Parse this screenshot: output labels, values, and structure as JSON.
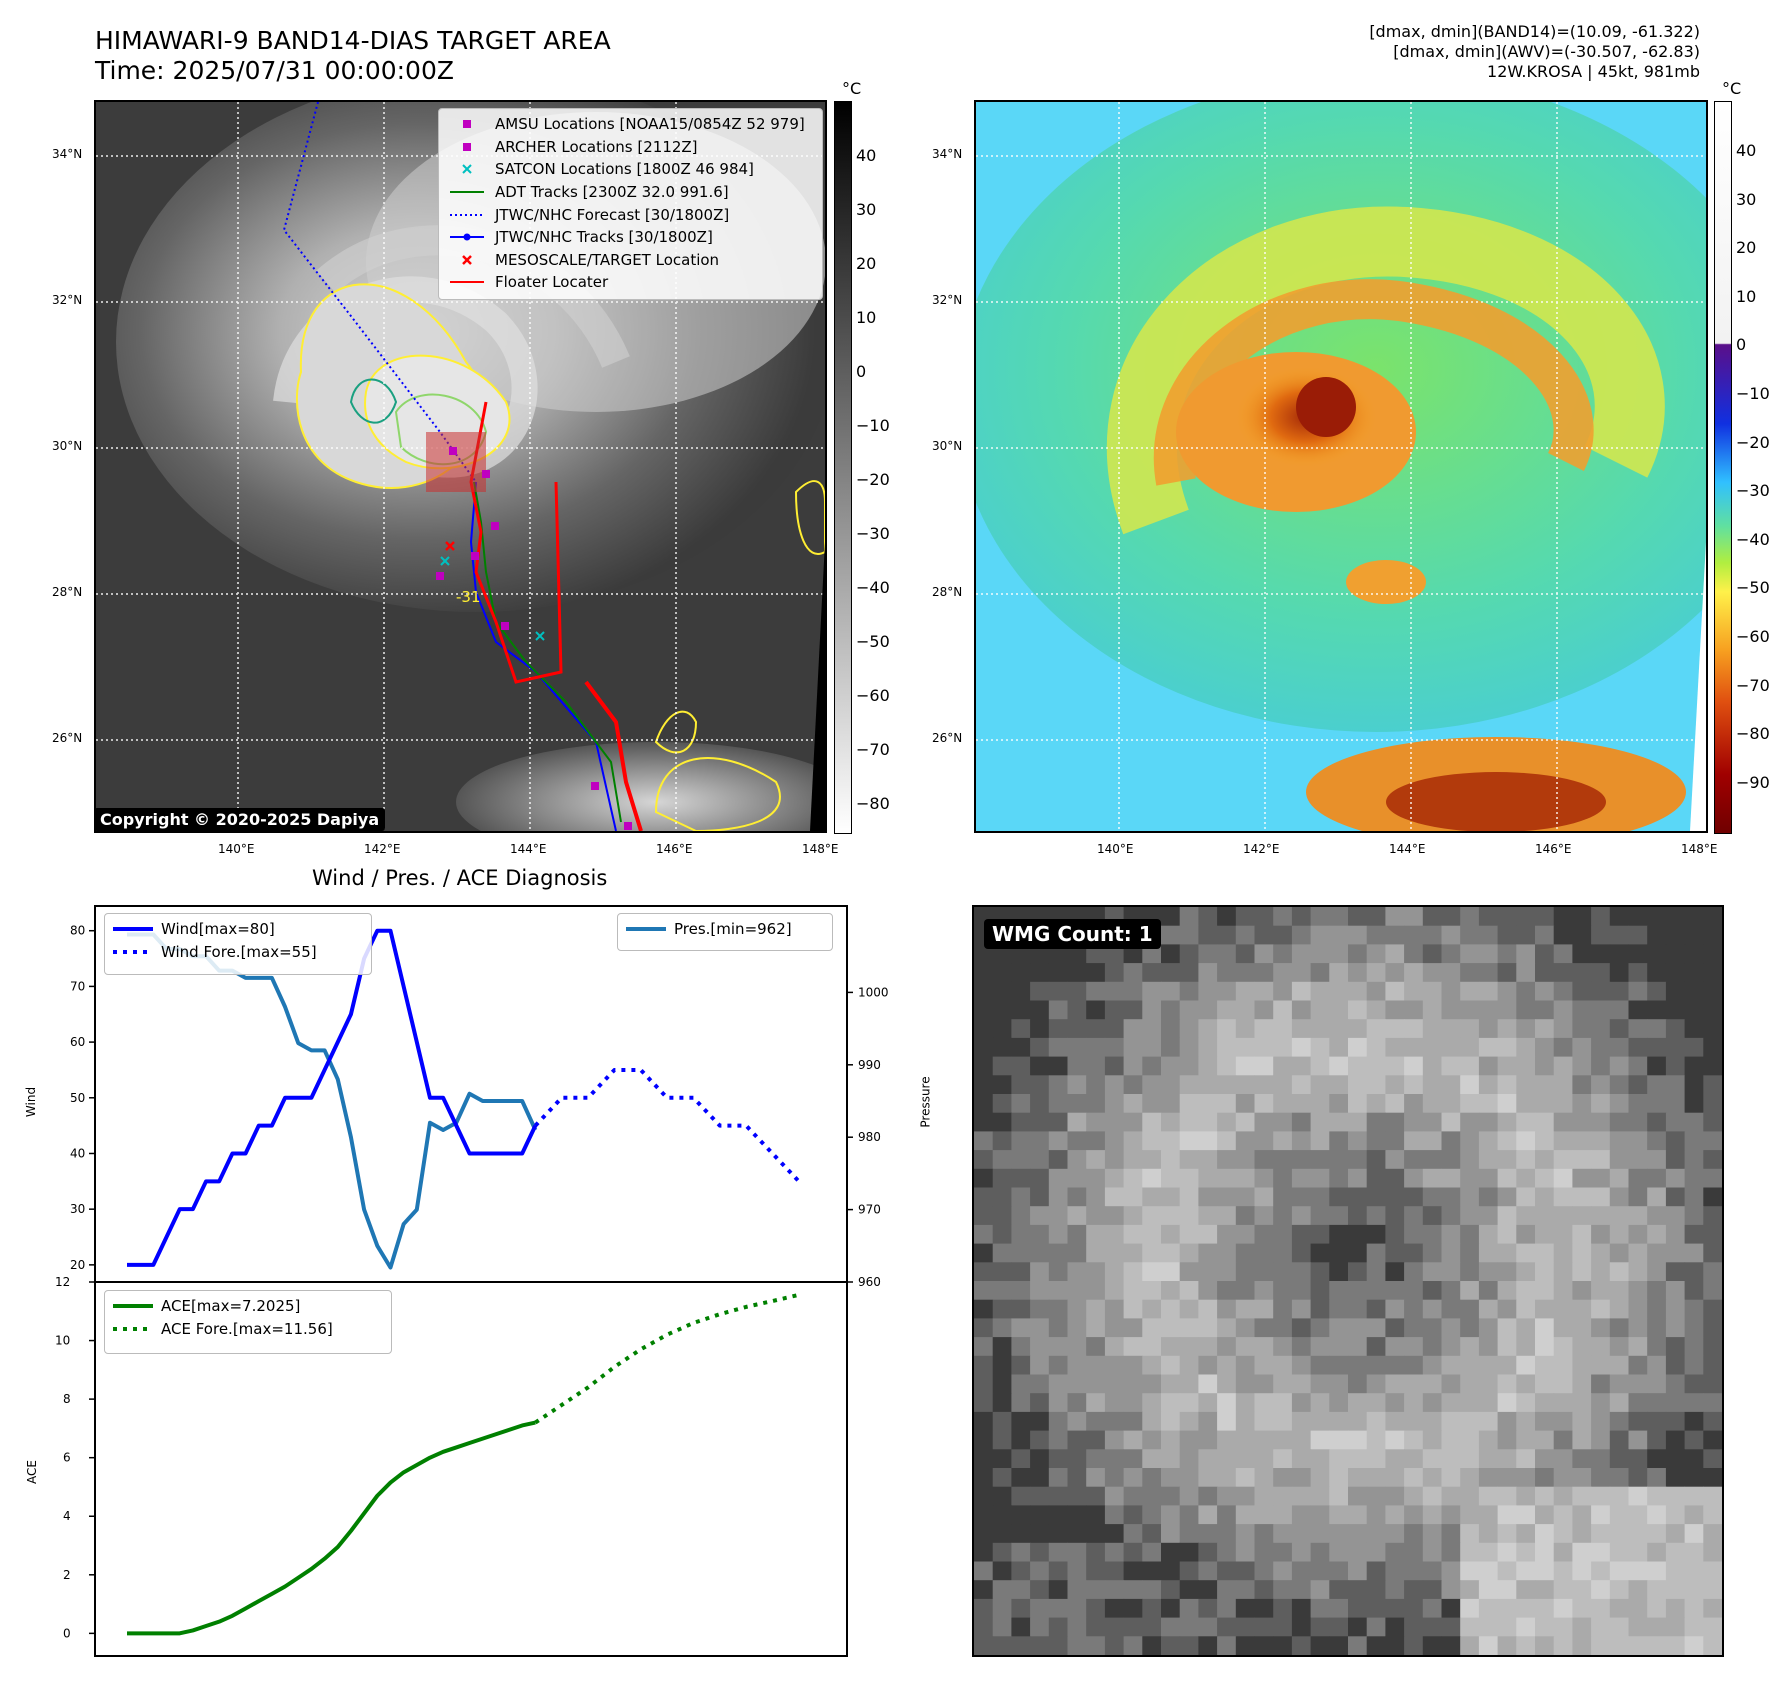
{
  "header": {
    "title_line1": "HIMAWARI-9 BAND14-DIAS TARGET AREA",
    "title_line2": "Time: 2025/07/31 00:00:00Z",
    "info_line1": "[dmax, dmin](BAND14)=(10.09, -61.322)",
    "info_line2": "[dmax, dmin](AWV)=(-30.507, -62.83)",
    "info_line3": "12W.KROSA | 45kt, 981mb"
  },
  "map": {
    "lon_ticks": [
      "140°E",
      "142°E",
      "144°E",
      "146°E",
      "148°E"
    ],
    "lat_ticks": [
      "34°N",
      "32°N",
      "30°N",
      "28°N",
      "26°N"
    ],
    "copyright": "Copyright © 2020-2025 Dapiya",
    "legend": [
      {
        "label": "AMSU Locations [NOAA15/0854Z 52 979]",
        "symbol": "square",
        "color": "#c000c0"
      },
      {
        "label": "ARCHER Locations [2112Z]",
        "symbol": "square",
        "color": "#c000c0"
      },
      {
        "label": "SATCON Locations [1800Z 46 984]",
        "symbol": "x",
        "color": "#00c0c0"
      },
      {
        "label": "ADT Tracks [2300Z 32.0 991.6]",
        "symbol": "line",
        "color": "#008000"
      },
      {
        "label": "JTWC/NHC Forecast [30/1800Z]",
        "symbol": "dotted",
        "color": "#0000ff"
      },
      {
        "label": "JTWC/NHC Tracks [30/1800Z]",
        "symbol": "line-dot",
        "color": "#0000ff"
      },
      {
        "label": "MESOSCALE/TARGET Location",
        "symbol": "x",
        "color": "#ff0000"
      },
      {
        "label": "Floater Locater",
        "symbol": "line",
        "color": "#ff0000"
      }
    ],
    "contour_label": "-31"
  },
  "colorbar_gray": {
    "unit": "°C",
    "ticks": [
      "40",
      "30",
      "20",
      "10",
      "0",
      "−10",
      "−20",
      "−30",
      "−40",
      "−50",
      "−60",
      "−70",
      "−80"
    ]
  },
  "colorbar_color": {
    "unit": "°C",
    "ticks": [
      "40",
      "30",
      "20",
      "10",
      "0",
      "−10",
      "−20",
      "−30",
      "−40",
      "−50",
      "−60",
      "−70",
      "−80",
      "−90"
    ]
  },
  "wmg": {
    "label": "WMG Count: 1"
  },
  "chart_data": [
    {
      "type": "line",
      "title": "Wind / Pres. / ACE Diagnosis",
      "ylabel": "Wind",
      "ylim": [
        18,
        83
      ],
      "y_ticks": [
        20,
        30,
        40,
        50,
        60,
        70,
        80
      ],
      "y2label": "Pressure",
      "y2lim": [
        960,
        1010
      ],
      "y2_ticks": [
        960,
        970,
        980,
        990,
        1000
      ],
      "x_index_range": [
        0,
        52
      ],
      "series": [
        {
          "name": "Wind[max=80]",
          "axis": "left",
          "style": "solid",
          "color": "#0000ff",
          "x": [
            0,
            1,
            2,
            3,
            4,
            5,
            6,
            7,
            8,
            9,
            10,
            11,
            12,
            13,
            14,
            15,
            16,
            17,
            18,
            19,
            20,
            21,
            22,
            23,
            24,
            25,
            26,
            27,
            28,
            29,
            30,
            31
          ],
          "values": [
            20,
            20,
            20,
            25,
            30,
            30,
            35,
            35,
            40,
            40,
            45,
            45,
            50,
            50,
            50,
            55,
            60,
            65,
            75,
            80,
            80,
            70,
            60,
            50,
            50,
            45,
            40,
            40,
            40,
            40,
            40,
            45
          ]
        },
        {
          "name": "Wind Fore.[max=55]",
          "axis": "left",
          "style": "dotted",
          "color": "#0000ff",
          "x": [
            31,
            33,
            35,
            37,
            39,
            41,
            43,
            45,
            47,
            49,
            51
          ],
          "values": [
            45,
            50,
            50,
            55,
            55,
            50,
            50,
            45,
            45,
            40,
            35
          ]
        },
        {
          "name": "Pres.[min=962]",
          "axis": "right",
          "style": "solid",
          "color": "#1f77b4",
          "x": [
            0,
            1,
            2,
            3,
            4,
            5,
            6,
            7,
            8,
            9,
            10,
            11,
            12,
            13,
            14,
            15,
            16,
            17,
            18,
            19,
            20,
            21,
            22,
            23,
            24,
            25,
            26,
            27,
            28,
            29,
            30,
            31
          ],
          "values": [
            1008,
            1008,
            1008,
            1006,
            1006,
            1005,
            1005,
            1003,
            1003,
            1002,
            1002,
            1002,
            998,
            993,
            992,
            992,
            988,
            980,
            970,
            965,
            962,
            968,
            970,
            982,
            981,
            982,
            986,
            985,
            985,
            985,
            985,
            981
          ]
        }
      ]
    },
    {
      "type": "line",
      "ylabel": "ACE",
      "ylim": [
        -0.5,
        12
      ],
      "y_ticks": [
        0,
        2,
        4,
        6,
        8,
        10,
        12
      ],
      "x_index_range": [
        0,
        52
      ],
      "series": [
        {
          "name": "ACE[max=7.2025]",
          "style": "solid",
          "color": "#008000",
          "x": [
            0,
            1,
            2,
            3,
            4,
            5,
            6,
            7,
            8,
            9,
            10,
            11,
            12,
            13,
            14,
            15,
            16,
            17,
            18,
            19,
            20,
            21,
            22,
            23,
            24,
            25,
            26,
            27,
            28,
            29,
            30,
            31
          ],
          "values": [
            0,
            0,
            0,
            0,
            0,
            0.1,
            0.25,
            0.4,
            0.6,
            0.85,
            1.1,
            1.35,
            1.6,
            1.9,
            2.2,
            2.55,
            2.95,
            3.5,
            4.1,
            4.7,
            5.15,
            5.5,
            5.75,
            6.0,
            6.2,
            6.35,
            6.5,
            6.65,
            6.8,
            6.95,
            7.1,
            7.2
          ]
        },
        {
          "name": "ACE Fore.[max=11.56]",
          "style": "dotted",
          "color": "#008000",
          "x": [
            31,
            33,
            35,
            37,
            39,
            41,
            43,
            45,
            47,
            49,
            51
          ],
          "values": [
            7.2,
            7.8,
            8.4,
            9.1,
            9.7,
            10.2,
            10.6,
            10.9,
            11.15,
            11.35,
            11.56
          ]
        }
      ]
    }
  ]
}
